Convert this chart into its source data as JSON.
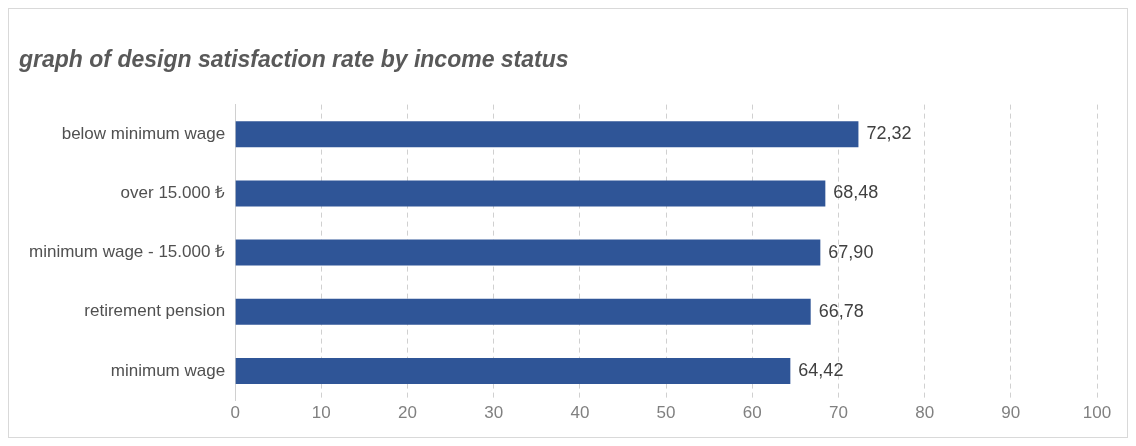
{
  "chart_data": {
    "type": "bar",
    "orientation": "horizontal",
    "title": "graph of design satisfaction rate by income status",
    "categories": [
      "below minimum wage",
      "over 15.000 ₺",
      "minimum wage - 15.000 ₺",
      "retirement pension",
      "minimum wage"
    ],
    "values": [
      72.32,
      68.48,
      67.9,
      66.78,
      64.42
    ],
    "value_labels": [
      "72,32",
      "68,48",
      "67,90",
      "66,78",
      "64,42"
    ],
    "color": "#2f5597",
    "xlim": [
      0,
      100
    ],
    "xticks": [
      0,
      10,
      20,
      30,
      40,
      50,
      60,
      70,
      80,
      90,
      100
    ],
    "grid": "x"
  }
}
